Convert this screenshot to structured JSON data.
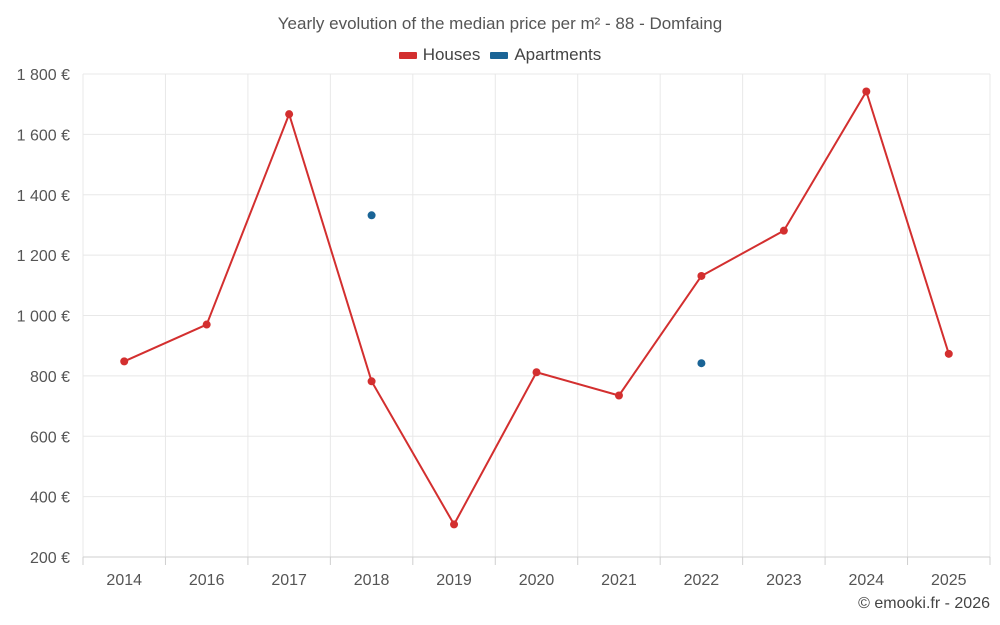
{
  "chart_data": {
    "type": "line",
    "title": "Yearly evolution of the median price per m² - 88 - Domfaing",
    "categories": [
      "2014",
      "2016",
      "2017",
      "2018",
      "2019",
      "2020",
      "2021",
      "2022",
      "2023",
      "2024",
      "2025"
    ],
    "series": [
      {
        "name": "Houses",
        "color": "#d32f2f",
        "values": [
          848,
          970,
          1667,
          782,
          308,
          812,
          735,
          1131,
          1281,
          1742,
          873
        ]
      },
      {
        "name": "Apartments",
        "color": "#1a6496",
        "values": [
          null,
          null,
          null,
          1332,
          null,
          null,
          null,
          842,
          null,
          null,
          null
        ]
      }
    ],
    "yticks": [
      200,
      400,
      600,
      800,
      1000,
      1200,
      1400,
      1600,
      1800
    ],
    "ytick_labels": [
      "200 €",
      "400 €",
      "600 €",
      "800 €",
      "1 000 €",
      "1 200 €",
      "1 400 €",
      "1 600 €",
      "1 800 €"
    ],
    "ylim": [
      200,
      1800
    ],
    "xlabel": "",
    "ylabel": "",
    "grid": true,
    "legend_position": "top-center"
  },
  "credit": "© emooki.fr - 2026"
}
